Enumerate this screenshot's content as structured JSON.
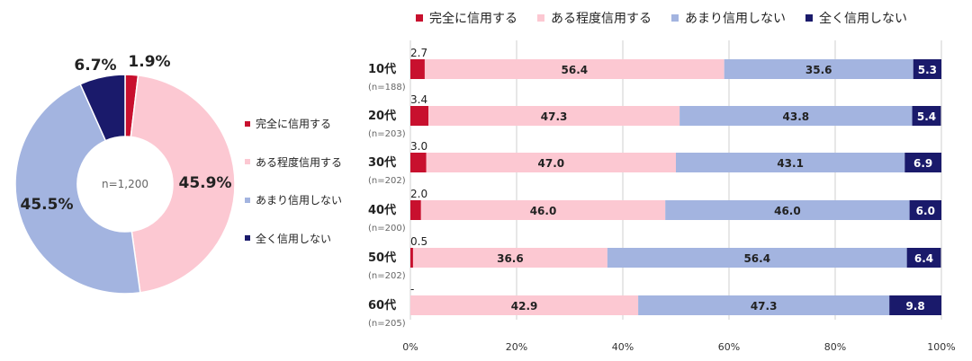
{
  "colors": {
    "complete_trust": "#c8102e",
    "some_trust": "#fcc8d2",
    "little_trust": "#a3b4e0",
    "no_trust": "#1a1a6b"
  },
  "legend": [
    "完全に信用する",
    "ある程度信用する",
    "あまり信用しない",
    "全く信用しない"
  ],
  "chart_data": [
    {
      "type": "pie",
      "donut": true,
      "center_label": "n=1,200",
      "labels": [
        "完全に信用する",
        "ある程度信用する",
        "あまり信用しない",
        "全く信用しない"
      ],
      "values": [
        1.9,
        45.9,
        45.5,
        6.7
      ],
      "value_labels": [
        "1.9%",
        "45.9%",
        "45.5%",
        "6.7%"
      ],
      "legend_position": "right"
    },
    {
      "type": "bar",
      "stacked": true,
      "orientation": "horizontal",
      "categories": [
        "10代",
        "20代",
        "30代",
        "40代",
        "50代",
        "60代"
      ],
      "category_sub": [
        "(n=188)",
        "(n=203)",
        "(n=202)",
        "(n=200)",
        "(n=202)",
        "(n=205)"
      ],
      "series": [
        {
          "name": "完全に信用する",
          "values": [
            2.7,
            3.4,
            3.0,
            2.0,
            0.5,
            0
          ],
          "labels": [
            "2.7",
            "3.4",
            "3.0",
            "2.0",
            "0.5",
            "-"
          ]
        },
        {
          "name": "ある程度信用する",
          "values": [
            56.4,
            47.3,
            47.0,
            46.0,
            36.6,
            42.9
          ],
          "labels": [
            "56.4",
            "47.3",
            "47.0",
            "46.0",
            "36.6",
            "42.9"
          ]
        },
        {
          "name": "あまり信用しない",
          "values": [
            35.6,
            43.8,
            43.1,
            46.0,
            56.4,
            47.3
          ],
          "labels": [
            "35.6",
            "43.8",
            "43.1",
            "46.0",
            "56.4",
            "47.3"
          ]
        },
        {
          "name": "全く信用しない",
          "values": [
            5.3,
            5.4,
            6.9,
            6.0,
            6.4,
            9.8
          ],
          "labels": [
            "5.3",
            "5.4",
            "6.9",
            "6.0",
            "6.4",
            "9.8"
          ]
        }
      ],
      "xlim": [
        0,
        100
      ],
      "xticks": [
        "0%",
        "20%",
        "40%",
        "60%",
        "80%",
        "100%"
      ],
      "grid": true,
      "legend_position": "top"
    }
  ]
}
